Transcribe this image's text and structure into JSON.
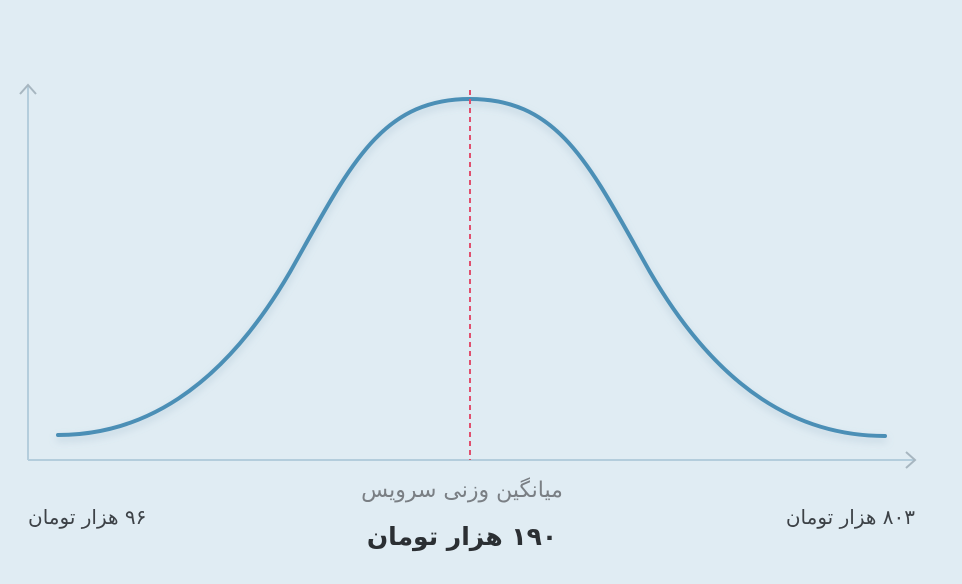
{
  "mean_caption": "میانگین وزنی سرویس",
  "mean_value": "۱۹۰ هزار تومان",
  "min_label": "۹۶ هزار تومان",
  "max_label": "۸۰۳ هزار تومان"
}
